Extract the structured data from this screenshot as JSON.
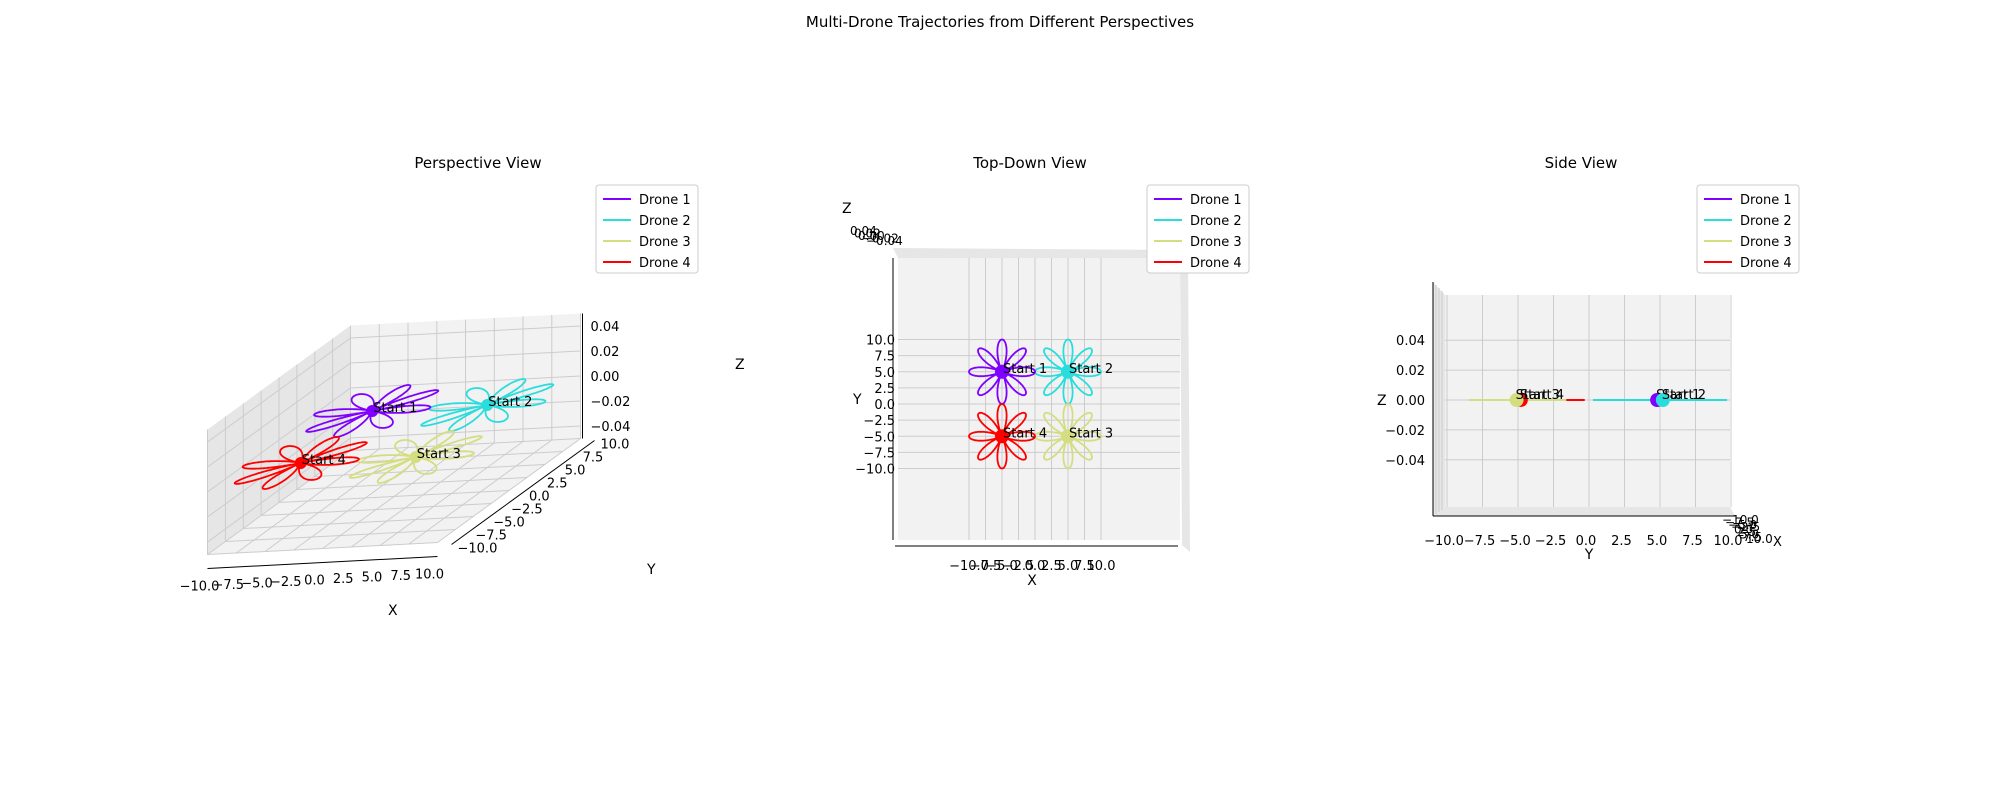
{
  "figure": {
    "title": "Multi-Drone Trajectories from Different Perspectives"
  },
  "colors": {
    "drone_1": "#8000ff",
    "drone_2": "#2adddd",
    "drone_3": "#d4dd80",
    "drone_4": "#ff0000",
    "pane": "#f2f2f2",
    "pane_dark": "#e6e6e6",
    "grid": "#cccccc"
  },
  "chart_data": [
    {
      "type": "line3d",
      "title": "Perspective View",
      "xlabel": "X",
      "ylabel": "Y",
      "zlabel": "Z",
      "xlim": [
        -10,
        10
      ],
      "ylim": [
        -10,
        10
      ],
      "zlim": [
        -0.05,
        0.05
      ],
      "x_ticks": [
        "−10.0",
        "−7.5",
        "−5.0",
        "−2.5",
        "0.0",
        "2.5",
        "5.0",
        "7.5",
        "10.0"
      ],
      "y_ticks": [
        "−10.0",
        "−7.5",
        "−5.0",
        "−2.5",
        "0.0",
        "2.5",
        "5.0",
        "7.5",
        "10.0"
      ],
      "z_ticks": [
        "−0.04",
        "−0.02",
        "0.00",
        "0.02",
        "0.04"
      ],
      "legend_position": "top-right",
      "series": [
        {
          "name": "Drone 1",
          "start_label": "Start 1",
          "center": [
            -5,
            5,
            0
          ],
          "petals": 8,
          "radius": 5
        },
        {
          "name": "Drone 2",
          "start_label": "Start 2",
          "center": [
            5,
            5,
            0
          ],
          "petals": 8,
          "radius": 5
        },
        {
          "name": "Drone 3",
          "start_label": "Start 3",
          "center": [
            5,
            -5,
            0
          ],
          "petals": 8,
          "radius": 5
        },
        {
          "name": "Drone 4",
          "start_label": "Start 4",
          "center": [
            -5,
            -5,
            0
          ],
          "petals": 8,
          "radius": 5
        }
      ]
    },
    {
      "type": "line3d",
      "title": "Top-Down View",
      "xlabel": "X",
      "ylabel": "Y",
      "zlabel": "Z",
      "xlim": [
        -10,
        10
      ],
      "ylim": [
        -10,
        10
      ],
      "x_ticks": [
        "−10.0",
        "−7.5",
        "−5.0",
        "−2.5",
        "0.0",
        "2.5",
        "5.0",
        "7.5",
        "10.0"
      ],
      "y_ticks": [
        "−10.0",
        "−7.5",
        "−5.0",
        "−2.5",
        "0.0",
        "2.5",
        "5.0",
        "7.5",
        "10.0"
      ],
      "z_ticks": [
        "0.04",
        "0.02",
        "0.00",
        "−0.02",
        "−0.04"
      ],
      "legend_position": "top-right",
      "series": [
        {
          "name": "Drone 1",
          "start_label": "Start 1",
          "center": [
            -5,
            5,
            0
          ],
          "petals": 8,
          "radius": 5
        },
        {
          "name": "Drone 2",
          "start_label": "Start 2",
          "center": [
            5,
            5,
            0
          ],
          "petals": 8,
          "radius": 5
        },
        {
          "name": "Drone 3",
          "start_label": "Start 3",
          "center": [
            5,
            -5,
            0
          ],
          "petals": 8,
          "radius": 5
        },
        {
          "name": "Drone 4",
          "start_label": "Start 4",
          "center": [
            -5,
            -5,
            0
          ],
          "petals": 8,
          "radius": 5
        }
      ]
    },
    {
      "type": "line3d",
      "title": "Side View",
      "xlabel": "X",
      "ylabel": "Y",
      "zlabel": "Z",
      "ylim": [
        -10,
        10
      ],
      "zlim": [
        -0.05,
        0.05
      ],
      "y_ticks": [
        "−10.0",
        "−7.5",
        "−5.0",
        "−2.5",
        "0.0",
        "2.5",
        "5.0",
        "7.5",
        "10.0"
      ],
      "z_ticks": [
        "0.04",
        "0.02",
        "0.00",
        "−0.02",
        "−0.04"
      ],
      "x_ticks": [
        "−10.0",
        "−7.5",
        "−5.0",
        "−2.5",
        "0.0",
        "2.5",
        "5.0",
        "7.5",
        "10.0"
      ],
      "legend_position": "top-right",
      "series": [
        {
          "name": "Drone 1",
          "start_label": "Start 1",
          "center": [
            -5,
            5,
            0
          ],
          "petals": 8,
          "radius": 5
        },
        {
          "name": "Drone 2",
          "start_label": "Start 2",
          "center": [
            5,
            5,
            0
          ],
          "petals": 8,
          "radius": 5
        },
        {
          "name": "Drone 3",
          "start_label": "Start 3",
          "center": [
            5,
            -5,
            0
          ],
          "petals": 8,
          "radius": 5
        },
        {
          "name": "Drone 4",
          "start_label": "Start 4",
          "center": [
            -5,
            -5,
            0
          ],
          "petals": 8,
          "radius": 5
        }
      ]
    }
  ]
}
